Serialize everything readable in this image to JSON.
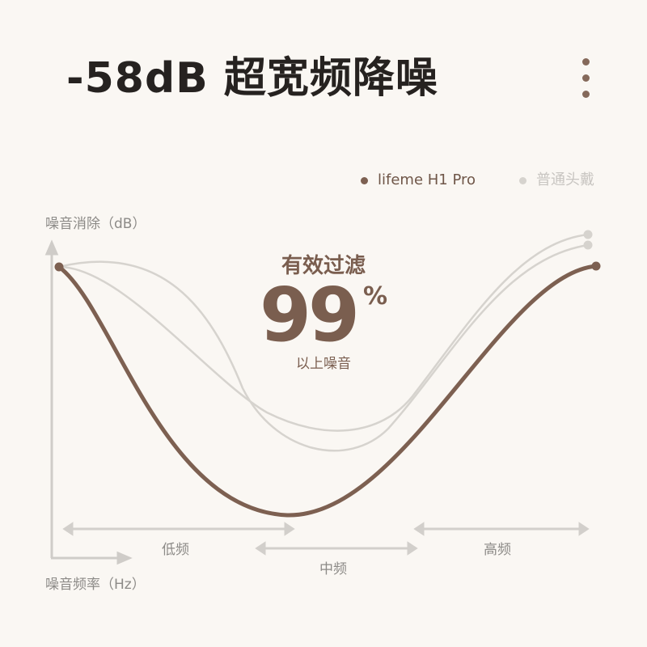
{
  "title": "-58dB 超宽频降噪",
  "menu_icon": "more-vertical-icon",
  "colors": {
    "primary": "#7d6051",
    "secondary": "#d6d3ce",
    "axis": "#cfccc8",
    "text": "#262220"
  },
  "highlight": {
    "label": "有效过滤",
    "value": "99",
    "unit": "%",
    "sub": "以上噪音"
  },
  "chart_data": {
    "type": "line",
    "ylabel": "噪音消除（dB）",
    "xlabel": "噪音频率（Hz）",
    "legend_position": "top-right",
    "grid": false,
    "legend": [
      {
        "name": "lifeme H1 Pro",
        "color": "#7d6051"
      },
      {
        "name": "普通头戴",
        "color": "#d6d3ce"
      }
    ],
    "bands": [
      "低频",
      "中频",
      "高频"
    ],
    "series": [
      {
        "name": "lifeme H1 Pro",
        "shape": "deep U-shaped attenuation across full band"
      },
      {
        "name": "普通头戴",
        "shape": "shallower dip, mainly mid band"
      },
      {
        "name": "普通头戴",
        "shape": "shallower dip, mainly mid band"
      }
    ]
  }
}
